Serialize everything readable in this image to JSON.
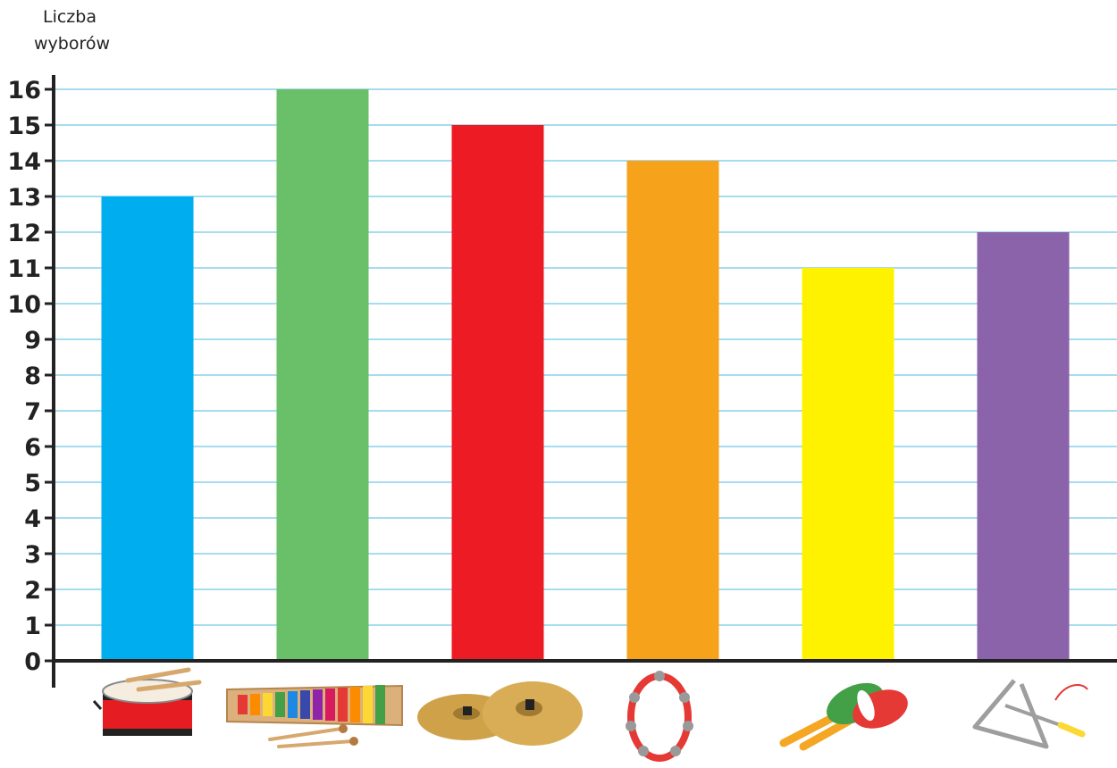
{
  "chart_data": {
    "type": "bar",
    "title": "",
    "xlabel": "",
    "ylabel_line1": "Liczba",
    "ylabel_line2": "wyborów",
    "ylim": [
      0,
      16
    ],
    "yticks": [
      "0",
      "1",
      "2",
      "3",
      "4",
      "5",
      "6",
      "7",
      "8",
      "9",
      "10",
      "11",
      "12",
      "13",
      "14",
      "15",
      "16"
    ],
    "grid": true,
    "grid_color": "#a6dcef",
    "categories": [
      "bębenek",
      "cymbałki",
      "talerze",
      "tamburyn",
      "marakasy",
      "trójkąt"
    ],
    "category_icons": [
      "drum-icon",
      "xylophone-icon",
      "cymbals-icon",
      "tambourine-icon",
      "maracas-icon",
      "triangle-icon"
    ],
    "values": [
      13,
      16,
      15,
      14,
      11,
      12
    ],
    "colors": [
      "#00aeef",
      "#6abf69",
      "#ed1c24",
      "#f7a21b",
      "#fff200",
      "#8a63ab"
    ]
  }
}
